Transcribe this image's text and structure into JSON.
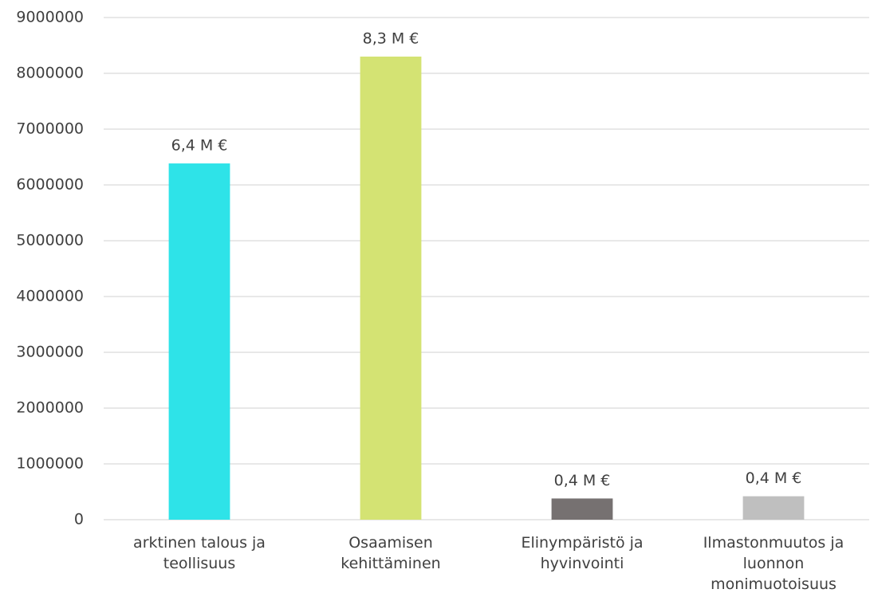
{
  "chart_data": {
    "type": "bar",
    "categories": [
      "arktinen talous ja teollisuus",
      "Osaamisen kehittäminen",
      "Elinympäristö ja hyvinvointi",
      "Ilmastonmuutos ja luonnon monimuotoisuus"
    ],
    "values": [
      6385000,
      8300000,
      380000,
      420000
    ],
    "value_labels": [
      "6,4 M €",
      "8,3 M €",
      "0,4 M €",
      "0,4 M €"
    ],
    "colors": [
      "#2ee3e8",
      "#d4e373",
      "#767171",
      "#bfbfbf"
    ],
    "ylim": [
      0,
      9000000
    ],
    "yticks": [
      0,
      1000000,
      2000000,
      3000000,
      4000000,
      5000000,
      6000000,
      7000000,
      8000000,
      9000000
    ],
    "grid": true
  }
}
